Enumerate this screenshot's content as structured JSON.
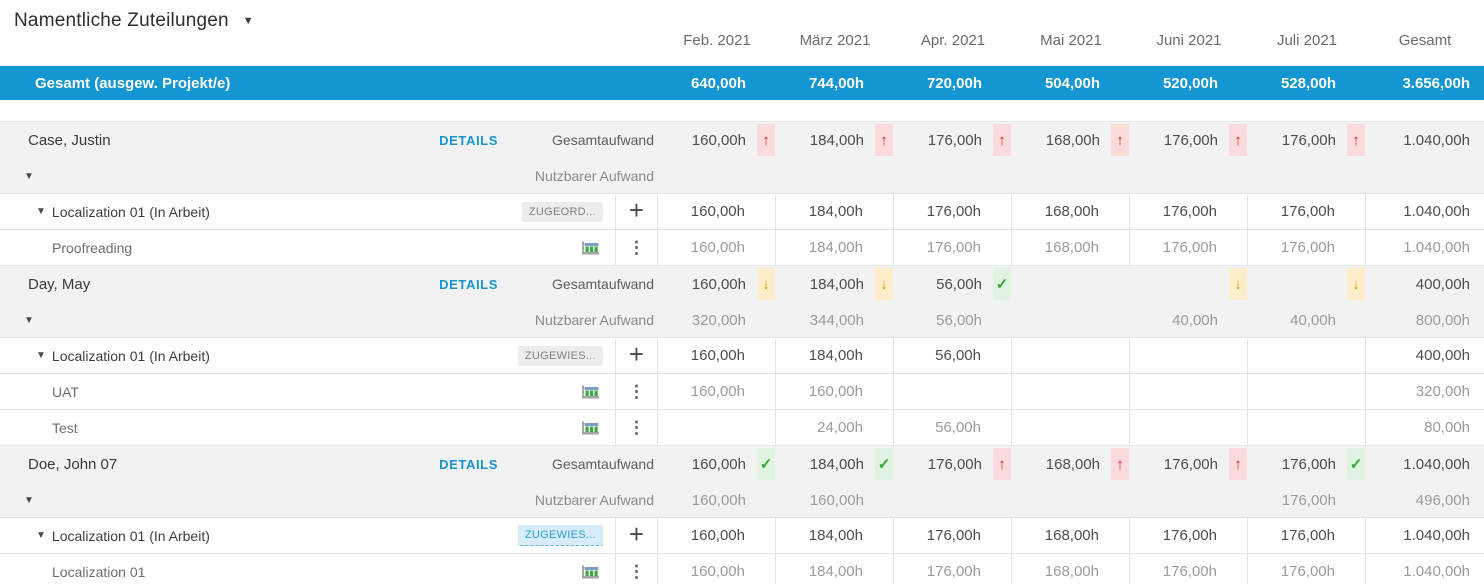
{
  "title": {
    "label": "Namentliche Zuteilungen"
  },
  "columns": [
    "Feb. 2021",
    "März 2021",
    "Apr. 2021",
    "Mai 2021",
    "Juni 2021",
    "Juli 2021",
    "Gesamt"
  ],
  "total_row": {
    "label": "Gesamt (ausgew. Projekt/e)",
    "values": [
      "640,00h",
      "744,00h",
      "720,00h",
      "504,00h",
      "520,00h",
      "528,00h",
      "3.656,00h"
    ]
  },
  "labels": {
    "details": "DETAILS",
    "total_effort": "Gesamtaufwand",
    "usable_effort": "Nutzbarer Aufwand"
  },
  "icons": {
    "caret": "▼",
    "expander": "▼",
    "plus": "+",
    "kebab": "⋮",
    "up": "↑",
    "down": "↓",
    "check": "✓"
  },
  "colors": {
    "accent_blue": "#1496d2",
    "link_blue": "#1793d3",
    "up_red": "#e41e26",
    "up_red_bg": "#fadada",
    "down_orange": "#f39200",
    "down_orange_bg": "#fdeecb",
    "check_green": "#33a532",
    "check_green_bg": "#e0f3e0"
  },
  "people": [
    {
      "name": "Case, Justin",
      "total_effort": {
        "values": [
          "160,00h",
          "184,00h",
          "176,00h",
          "168,00h",
          "176,00h",
          "176,00h",
          "1.040,00h"
        ],
        "indicators": [
          "up",
          "up",
          "up",
          "up",
          "up",
          "up",
          ""
        ]
      },
      "usable_effort": {
        "values": [
          "",
          "",
          "",
          "",
          "",
          "",
          ""
        ]
      },
      "rows": [
        {
          "type": "project",
          "label": "Localization 01 (In Arbeit)",
          "badge": "ZUGEORD...",
          "badge_style": "gray",
          "values": [
            "160,00h",
            "184,00h",
            "176,00h",
            "168,00h",
            "176,00h",
            "176,00h",
            "1.040,00h"
          ]
        },
        {
          "type": "task",
          "label": "Proofreading",
          "values": [
            "160,00h",
            "184,00h",
            "176,00h",
            "168,00h",
            "176,00h",
            "176,00h",
            "1.040,00h"
          ]
        }
      ]
    },
    {
      "name": "Day, May",
      "total_effort": {
        "values": [
          "160,00h",
          "184,00h",
          "56,00h",
          "",
          "",
          "",
          "400,00h"
        ],
        "indicators": [
          "down",
          "down",
          "check",
          "",
          "down",
          "down",
          ""
        ]
      },
      "usable_effort": {
        "values": [
          "320,00h",
          "344,00h",
          "56,00h",
          "",
          "40,00h",
          "40,00h",
          "800,00h"
        ]
      },
      "rows": [
        {
          "type": "project",
          "label": "Localization 01 (In Arbeit)",
          "badge": "ZUGEWIES...",
          "badge_style": "gray",
          "values": [
            "160,00h",
            "184,00h",
            "56,00h",
            "",
            "",
            "",
            "400,00h"
          ]
        },
        {
          "type": "task",
          "label": "UAT",
          "values": [
            "160,00h",
            "160,00h",
            "",
            "",
            "",
            "",
            "320,00h"
          ]
        },
        {
          "type": "task",
          "label": "Test",
          "values": [
            "",
            "24,00h",
            "56,00h",
            "",
            "",
            "",
            "80,00h"
          ]
        }
      ]
    },
    {
      "name": "Doe, John 07",
      "total_effort": {
        "values": [
          "160,00h",
          "184,00h",
          "176,00h",
          "168,00h",
          "176,00h",
          "176,00h",
          "1.040,00h"
        ],
        "indicators": [
          "check",
          "check",
          "up",
          "up",
          "up",
          "check",
          ""
        ]
      },
      "usable_effort": {
        "values": [
          "160,00h",
          "160,00h",
          "",
          "",
          "",
          "176,00h",
          "496,00h"
        ]
      },
      "rows": [
        {
          "type": "project",
          "label": "Localization 01 (In Arbeit)",
          "badge": "ZUGEWIES...",
          "badge_style": "blue",
          "values": [
            "160,00h",
            "184,00h",
            "176,00h",
            "168,00h",
            "176,00h",
            "176,00h",
            "1.040,00h"
          ]
        },
        {
          "type": "task",
          "label": "Localization 01",
          "values": [
            "160,00h",
            "184,00h",
            "176,00h",
            "168,00h",
            "176,00h",
            "176,00h",
            "1.040,00h"
          ]
        }
      ]
    }
  ]
}
